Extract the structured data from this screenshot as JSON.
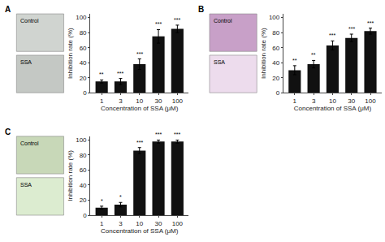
{
  "chart_data": [
    {
      "type": "bar",
      "title": "A",
      "categories": [
        "1",
        "3",
        "10",
        "30",
        "100"
      ],
      "values": [
        15,
        15,
        38,
        75,
        85
      ],
      "errors": [
        2,
        4,
        7,
        9,
        5
      ],
      "annotations": [
        "**",
        "***",
        "***",
        "***",
        "***"
      ],
      "color": "#111111",
      "xlabel": "Concentration of SSA (μM)",
      "ylabel": "Inhibition rate (%)",
      "ylim": [
        0,
        105
      ],
      "yticks": [
        0,
        20,
        40,
        60,
        80,
        100
      ],
      "grid": false,
      "image_panels": [
        {
          "text": "Control",
          "color": "#d0d4d0"
        },
        {
          "text": "SSA",
          "color": "#c4c8c4"
        }
      ]
    },
    {
      "type": "bar",
      "title": "B",
      "categories": [
        "1",
        "3",
        "10",
        "30",
        "100"
      ],
      "values": [
        30,
        38,
        63,
        73,
        82
      ],
      "errors": [
        6,
        5,
        6,
        5,
        4
      ],
      "annotations": [
        "**",
        "**",
        "***",
        "***",
        "***"
      ],
      "color": "#111111",
      "xlabel": "Concentration of SSA (μM)",
      "ylabel": "Inhibition rate (%)",
      "ylim": [
        0,
        105
      ],
      "yticks": [
        0,
        20,
        40,
        60,
        80,
        100
      ],
      "grid": false,
      "image_panels": [
        {
          "text": "Control",
          "color": "#c8a0c8"
        },
        {
          "text": "SSA",
          "color": "#eddced"
        }
      ]
    },
    {
      "type": "bar",
      "title": "C",
      "categories": [
        "1",
        "3",
        "10",
        "30",
        "100"
      ],
      "values": [
        10,
        14,
        86,
        98,
        98
      ],
      "errors": [
        2,
        3,
        4,
        2,
        2
      ],
      "annotations": [
        "*",
        "*",
        "***",
        "***",
        "***"
      ],
      "color": "#111111",
      "xlabel": "Concentration of SSA (μM)",
      "ylabel": "Inhibition rate (%)",
      "ylim": [
        0,
        105
      ],
      "yticks": [
        0,
        20,
        40,
        60,
        80,
        100
      ],
      "grid": false,
      "image_panels": [
        {
          "text": "Control",
          "color": "#c8d8b8"
        },
        {
          "text": "SSA",
          "color": "#dcecd0"
        }
      ]
    }
  ]
}
